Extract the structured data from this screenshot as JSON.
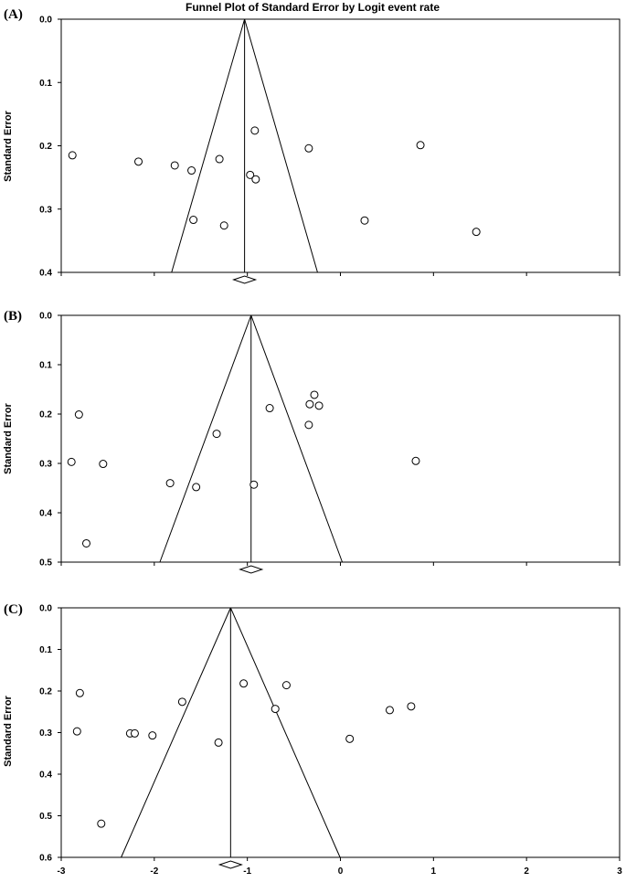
{
  "title": "Funnel Plot of Standard Error by Logit event rate",
  "chart_data": [
    {
      "type": "scatter",
      "panel_label": "(A)",
      "ylabel": "Standard Error",
      "ylim": [
        0.0,
        0.4
      ],
      "y_inverted": true,
      "xlim": [
        -3,
        3
      ],
      "y_ticks": [
        "0.0",
        "0.1",
        "0.2",
        "0.3",
        "0.4"
      ],
      "x_ticks": [],
      "grid": false,
      "pooled_estimate": -1.03,
      "points": [
        {
          "x": -2.88,
          "y": 0.215
        },
        {
          "x": -2.17,
          "y": 0.225
        },
        {
          "x": -1.78,
          "y": 0.231
        },
        {
          "x": -1.6,
          "y": 0.239
        },
        {
          "x": -1.3,
          "y": 0.221
        },
        {
          "x": -0.92,
          "y": 0.176
        },
        {
          "x": -0.97,
          "y": 0.246
        },
        {
          "x": -0.91,
          "y": 0.253
        },
        {
          "x": -0.34,
          "y": 0.204
        },
        {
          "x": 0.86,
          "y": 0.199
        },
        {
          "x": -1.58,
          "y": 0.317
        },
        {
          "x": -1.25,
          "y": 0.326
        },
        {
          "x": 0.26,
          "y": 0.318
        },
        {
          "x": 1.46,
          "y": 0.336
        }
      ]
    },
    {
      "type": "scatter",
      "panel_label": "(B)",
      "ylabel": "Standard Error",
      "ylim": [
        0.0,
        0.5
      ],
      "y_inverted": true,
      "xlim": [
        -3,
        3
      ],
      "y_ticks": [
        "0.0",
        "0.1",
        "0.2",
        "0.3",
        "0.4",
        "0.5"
      ],
      "x_ticks": [],
      "grid": false,
      "pooled_estimate": -0.96,
      "points": [
        {
          "x": -2.81,
          "y": 0.201
        },
        {
          "x": -2.89,
          "y": 0.297
        },
        {
          "x": -2.55,
          "y": 0.301
        },
        {
          "x": -2.73,
          "y": 0.462
        },
        {
          "x": -1.83,
          "y": 0.34
        },
        {
          "x": -1.55,
          "y": 0.348
        },
        {
          "x": -1.33,
          "y": 0.24
        },
        {
          "x": -0.76,
          "y": 0.188
        },
        {
          "x": -0.93,
          "y": 0.343
        },
        {
          "x": -0.33,
          "y": 0.18
        },
        {
          "x": -0.28,
          "y": 0.161
        },
        {
          "x": -0.23,
          "y": 0.183
        },
        {
          "x": -0.34,
          "y": 0.222
        },
        {
          "x": 0.81,
          "y": 0.295
        }
      ]
    },
    {
      "type": "scatter",
      "panel_label": "(C)",
      "ylabel": "Standard Error",
      "ylim": [
        0.0,
        0.6
      ],
      "y_inverted": true,
      "xlim": [
        -3,
        3
      ],
      "y_ticks": [
        "0.0",
        "0.1",
        "0.2",
        "0.3",
        "0.4",
        "0.5",
        "0.6"
      ],
      "x_ticks": [
        "-3",
        "-2",
        "-1",
        "0",
        "1",
        "2",
        "3"
      ],
      "grid": false,
      "pooled_estimate": -1.18,
      "points": [
        {
          "x": -2.8,
          "y": 0.205
        },
        {
          "x": -2.83,
          "y": 0.297
        },
        {
          "x": -2.26,
          "y": 0.302
        },
        {
          "x": -2.21,
          "y": 0.302
        },
        {
          "x": -2.02,
          "y": 0.307
        },
        {
          "x": -1.7,
          "y": 0.226
        },
        {
          "x": -1.31,
          "y": 0.324
        },
        {
          "x": -1.04,
          "y": 0.182
        },
        {
          "x": -0.7,
          "y": 0.243
        },
        {
          "x": -0.58,
          "y": 0.186
        },
        {
          "x": 0.1,
          "y": 0.315
        },
        {
          "x": 0.53,
          "y": 0.246
        },
        {
          "x": 0.76,
          "y": 0.237
        },
        {
          "x": -2.57,
          "y": 0.519
        }
      ]
    }
  ]
}
